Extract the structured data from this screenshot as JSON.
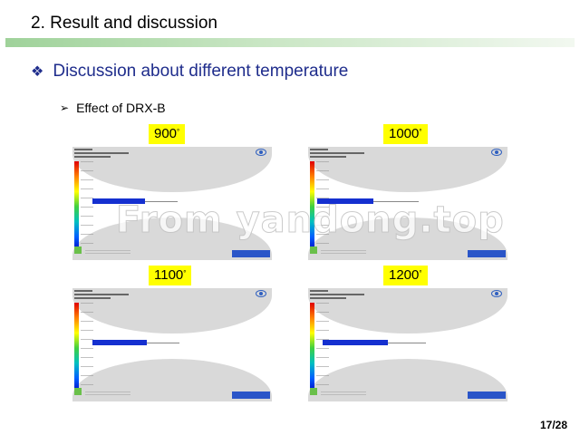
{
  "slide": {
    "title": "2. Result and discussion",
    "heading": "Discussion about different temperature",
    "subheading": "Effect of DRX-B",
    "page_number": "17/28",
    "watermark": "From yandong.top"
  },
  "panels": [
    {
      "temp": "900",
      "unit": "°"
    },
    {
      "temp": "1000",
      "unit": "°"
    },
    {
      "temp": "1100",
      "unit": "°"
    },
    {
      "temp": "1200",
      "unit": "°"
    }
  ],
  "colors": {
    "heading": "#1f2d8c",
    "label_bg": "#ffff00",
    "recrystallized_strip": "#1530d0",
    "roll": "#d9d9d9"
  },
  "icons": {
    "heading_bullet": "diamond-cluster-icon",
    "sub_bullet": "arrowhead-icon"
  }
}
